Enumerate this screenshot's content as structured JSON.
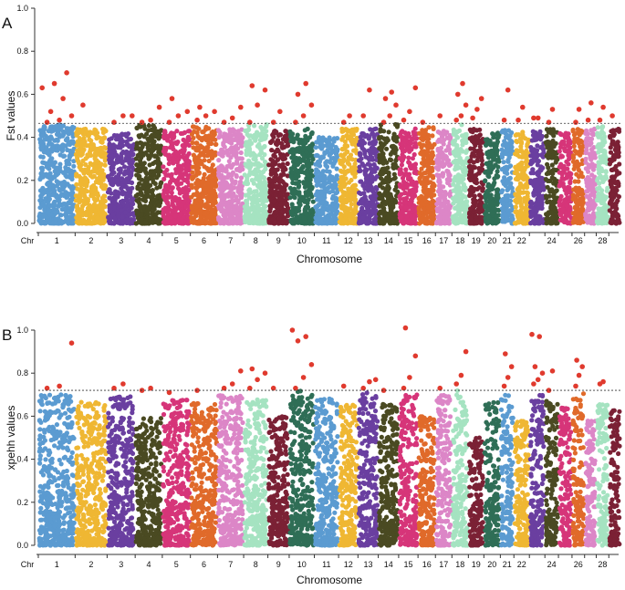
{
  "chart_data": [
    {
      "type": "scatter",
      "subtype": "manhattan",
      "panel_label": "A",
      "ylabel": "Fst values",
      "xlabel": "Chromosome",
      "x_prefix_label": "Chr",
      "ylim": [
        0,
        1.0
      ],
      "yticks": [
        "0.0",
        "0.2",
        "0.4",
        "0.6",
        "0.8",
        "1.0"
      ],
      "threshold": 0.465,
      "chromosome_labels": [
        "1",
        "2",
        "3",
        "4",
        "5",
        "6",
        "7",
        "8",
        "9",
        "10",
        "11",
        "12",
        "13",
        "14",
        "15",
        "16",
        "17",
        "18",
        "19",
        "20",
        "21",
        "22",
        "24",
        "26",
        "28"
      ],
      "chromosomes": [
        {
          "chr": 1,
          "color": "#5b9bd1",
          "max": 0.46,
          "highlights": [
            0.47,
            0.48,
            0.5,
            0.52,
            0.58,
            0.63,
            0.65,
            0.7
          ]
        },
        {
          "chr": 2,
          "color": "#efb733",
          "max": 0.44,
          "highlights": [
            0.55
          ]
        },
        {
          "chr": 3,
          "color": "#6a3fa0",
          "max": 0.42,
          "highlights": [
            0.47,
            0.5,
            0.5
          ]
        },
        {
          "chr": 4,
          "color": "#4a4a22",
          "max": 0.46,
          "highlights": [
            0.47,
            0.48,
            0.54
          ]
        },
        {
          "chr": 5,
          "color": "#d63579",
          "max": 0.43,
          "highlights": [
            0.47,
            0.5,
            0.52,
            0.58
          ]
        },
        {
          "chr": 6,
          "color": "#e06a2a",
          "max": 0.45,
          "highlights": [
            0.48,
            0.5,
            0.52,
            0.54
          ]
        },
        {
          "chr": 7,
          "color": "#dc86c7",
          "max": 0.44,
          "highlights": [
            0.47,
            0.49,
            0.54
          ]
        },
        {
          "chr": 8,
          "color": "#a5e3c1",
          "max": 0.46,
          "highlights": [
            0.47,
            0.55,
            0.62,
            0.64
          ]
        },
        {
          "chr": 9,
          "color": "#7b2135",
          "max": 0.43,
          "highlights": [
            0.47,
            0.52
          ]
        },
        {
          "chr": 10,
          "color": "#2f6e56",
          "max": 0.44,
          "highlights": [
            0.47,
            0.5,
            0.55,
            0.6,
            0.65
          ]
        },
        {
          "chr": 11,
          "color": "#5b9bd1",
          "max": 0.4,
          "highlights": []
        },
        {
          "chr": 12,
          "color": "#efb733",
          "max": 0.44,
          "highlights": [
            0.47,
            0.5
          ]
        },
        {
          "chr": 13,
          "color": "#6a3fa0",
          "max": 0.44,
          "highlights": [
            0.5,
            0.62
          ]
        },
        {
          "chr": 14,
          "color": "#4a4a22",
          "max": 0.46,
          "highlights": [
            0.47,
            0.5,
            0.55,
            0.58,
            0.61
          ]
        },
        {
          "chr": 15,
          "color": "#d63579",
          "max": 0.44,
          "highlights": [
            0.48,
            0.52,
            0.63
          ]
        },
        {
          "chr": 16,
          "color": "#e06a2a",
          "max": 0.45,
          "highlights": [
            0.47
          ]
        },
        {
          "chr": 17,
          "color": "#dc86c7",
          "max": 0.43,
          "highlights": [
            0.5
          ]
        },
        {
          "chr": 18,
          "color": "#a5e3c1",
          "max": 0.46,
          "highlights": [
            0.48,
            0.5,
            0.55,
            0.6,
            0.65
          ]
        },
        {
          "chr": 19,
          "color": "#7b2135",
          "max": 0.44,
          "highlights": [
            0.49,
            0.53,
            0.58
          ]
        },
        {
          "chr": 20,
          "color": "#2f6e56",
          "max": 0.42,
          "highlights": []
        },
        {
          "chr": 21,
          "color": "#5b9bd1",
          "max": 0.44,
          "highlights": [
            0.48,
            0.62
          ]
        },
        {
          "chr": 22,
          "color": "#efb733",
          "max": 0.44,
          "highlights": [
            0.48,
            0.54
          ]
        },
        {
          "chr": 23,
          "color": "#6a3fa0",
          "max": 0.43,
          "highlights": [
            0.49,
            0.49
          ]
        },
        {
          "chr": 24,
          "color": "#4a4a22",
          "max": 0.44,
          "highlights": [
            0.47,
            0.53
          ]
        },
        {
          "chr": 25,
          "color": "#d63579",
          "max": 0.42,
          "highlights": []
        },
        {
          "chr": 26,
          "color": "#e06a2a",
          "max": 0.44,
          "highlights": [
            0.47,
            0.53
          ]
        },
        {
          "chr": 27,
          "color": "#dc86c7",
          "max": 0.44,
          "highlights": [
            0.48,
            0.56
          ]
        },
        {
          "chr": 28,
          "color": "#a5e3c1",
          "max": 0.46,
          "highlights": [
            0.48,
            0.54
          ]
        },
        {
          "chr": 29,
          "color": "#7b2135",
          "max": 0.44,
          "highlights": [
            0.5
          ]
        }
      ]
    },
    {
      "type": "scatter",
      "subtype": "manhattan",
      "panel_label": "B",
      "ylabel": "xpehh values",
      "xlabel": "Chromosome",
      "x_prefix_label": "Chr",
      "ylim": [
        0,
        1.0
      ],
      "yticks": [
        "0.0",
        "0.2",
        "0.4",
        "0.6",
        "0.8",
        "1.0"
      ],
      "threshold": 0.72,
      "chromosome_labels": [
        "1",
        "2",
        "3",
        "4",
        "5",
        "6",
        "7",
        "8",
        "9",
        "10",
        "11",
        "12",
        "13",
        "14",
        "15",
        "16",
        "17",
        "18",
        "19",
        "20",
        "21",
        "22",
        "24",
        "26",
        "28"
      ],
      "chromosomes": [
        {
          "chr": 1,
          "color": "#5b9bd1",
          "max": 0.7,
          "highlights": [
            0.73,
            0.74,
            0.94
          ]
        },
        {
          "chr": 2,
          "color": "#efb733",
          "max": 0.67,
          "highlights": []
        },
        {
          "chr": 3,
          "color": "#6a3fa0",
          "max": 0.7,
          "highlights": [
            0.73,
            0.75
          ]
        },
        {
          "chr": 4,
          "color": "#4a4a22",
          "max": 0.6,
          "highlights": [
            0.72,
            0.73
          ]
        },
        {
          "chr": 5,
          "color": "#d63579",
          "max": 0.68,
          "highlights": [
            0.71
          ]
        },
        {
          "chr": 6,
          "color": "#e06a2a",
          "max": 0.66,
          "highlights": [
            0.72
          ]
        },
        {
          "chr": 7,
          "color": "#dc86c7",
          "max": 0.7,
          "highlights": [
            0.73,
            0.75,
            0.81
          ]
        },
        {
          "chr": 8,
          "color": "#a5e3c1",
          "max": 0.68,
          "highlights": [
            0.73,
            0.77,
            0.8,
            0.82
          ]
        },
        {
          "chr": 9,
          "color": "#7b2135",
          "max": 0.6,
          "highlights": [
            0.73
          ]
        },
        {
          "chr": 10,
          "color": "#2f6e56",
          "max": 0.72,
          "highlights": [
            0.73,
            0.78,
            0.84,
            0.95,
            0.97,
            1.0
          ]
        },
        {
          "chr": 11,
          "color": "#5b9bd1",
          "max": 0.69,
          "highlights": []
        },
        {
          "chr": 12,
          "color": "#efb733",
          "max": 0.66,
          "highlights": [
            0.74
          ]
        },
        {
          "chr": 13,
          "color": "#6a3fa0",
          "max": 0.71,
          "highlights": [
            0.73,
            0.76,
            0.77
          ]
        },
        {
          "chr": 14,
          "color": "#4a4a22",
          "max": 0.66,
          "highlights": [
            0.72
          ]
        },
        {
          "chr": 15,
          "color": "#d63579",
          "max": 0.7,
          "highlights": [
            0.73,
            0.78,
            0.88,
            1.01
          ]
        },
        {
          "chr": 16,
          "color": "#e06a2a",
          "max": 0.6,
          "highlights": []
        },
        {
          "chr": 17,
          "color": "#dc86c7",
          "max": 0.7,
          "highlights": [
            0.73
          ]
        },
        {
          "chr": 18,
          "color": "#a5e3c1",
          "max": 0.72,
          "highlights": [
            0.75,
            0.79,
            0.9
          ]
        },
        {
          "chr": 19,
          "color": "#7b2135",
          "max": 0.5,
          "highlights": []
        },
        {
          "chr": 20,
          "color": "#2f6e56",
          "max": 0.67,
          "highlights": []
        },
        {
          "chr": 21,
          "color": "#5b9bd1",
          "max": 0.7,
          "highlights": [
            0.74,
            0.78,
            0.83,
            0.89
          ]
        },
        {
          "chr": 22,
          "color": "#efb733",
          "max": 0.58,
          "highlights": []
        },
        {
          "chr": 23,
          "color": "#6a3fa0",
          "max": 0.7,
          "highlights": [
            0.75,
            0.77,
            0.8,
            0.83,
            0.97,
            0.98
          ]
        },
        {
          "chr": 24,
          "color": "#4a4a22",
          "max": 0.67,
          "highlights": [
            0.72,
            0.81
          ]
        },
        {
          "chr": 25,
          "color": "#d63579",
          "max": 0.64,
          "highlights": []
        },
        {
          "chr": 26,
          "color": "#e06a2a",
          "max": 0.71,
          "highlights": [
            0.74,
            0.79,
            0.83,
            0.86
          ]
        },
        {
          "chr": 27,
          "color": "#dc86c7",
          "max": 0.58,
          "highlights": []
        },
        {
          "chr": 28,
          "color": "#a5e3c1",
          "max": 0.66,
          "highlights": [
            0.75,
            0.76
          ]
        },
        {
          "chr": 29,
          "color": "#7b2135",
          "max": 0.63,
          "highlights": []
        }
      ]
    }
  ],
  "highlight_color": "#e03a2e"
}
